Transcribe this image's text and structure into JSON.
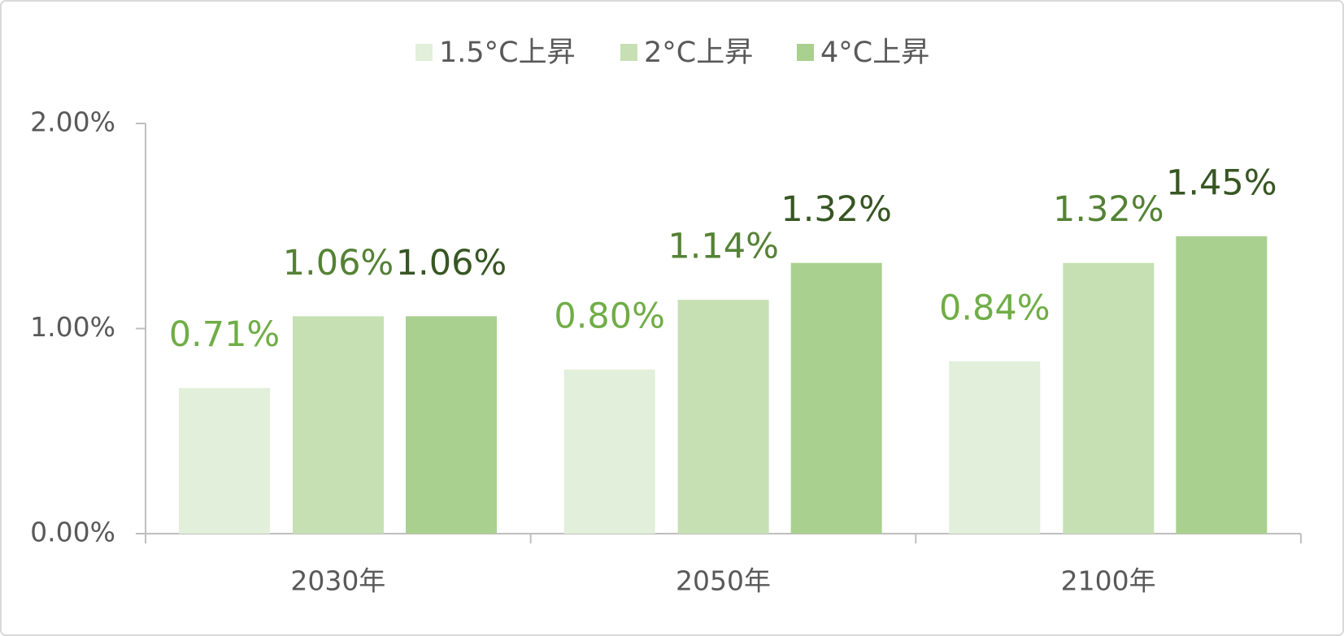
{
  "chart_data": {
    "type": "bar",
    "categories": [
      "2030年",
      "2050年",
      "2100年"
    ],
    "series": [
      {
        "name": "1.5°C上昇",
        "color": "#e2efda",
        "label_color": "#70ad47",
        "values": [
          0.71,
          0.8,
          0.84
        ],
        "value_labels": [
          "0.71%",
          "0.80%",
          "0.84%"
        ]
      },
      {
        "name": "2°C上昇",
        "color": "#c6e0b4",
        "label_color": "#548235",
        "values": [
          1.06,
          1.14,
          1.32
        ],
        "value_labels": [
          "1.06%",
          "1.14%",
          "1.32%"
        ]
      },
      {
        "name": "4°C上昇",
        "color": "#a9d08e",
        "label_color": "#375623",
        "values": [
          1.06,
          1.32,
          1.45
        ],
        "value_labels": [
          "1.06%",
          "1.32%",
          "1.45%"
        ]
      }
    ],
    "ylim": [
      0,
      2
    ],
    "yticks": [
      {
        "value": 0,
        "label": "0.00%"
      },
      {
        "value": 1,
        "label": "1.00%"
      },
      {
        "value": 2,
        "label": "2.00%"
      }
    ],
    "legend": "top",
    "grid": false
  }
}
